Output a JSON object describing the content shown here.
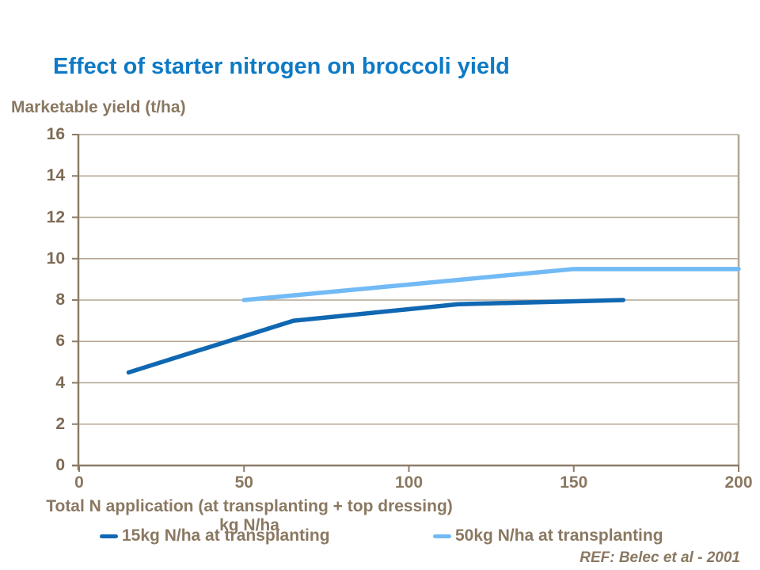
{
  "title": "Effect of starter nitrogen on broccoli yield",
  "reference": "REF: Belec et al - 2001",
  "colors": {
    "title_blue": "#0d7ac6",
    "dark_blue": "#1068b2",
    "light_blue": "#72baf5",
    "taupe_text": "#8a7861",
    "tick_text": "#7d6b54",
    "grid": "#b3a695",
    "axis": "#8c7d68",
    "background": "#ffffff"
  },
  "chart_data": {
    "type": "line",
    "title": "Effect of starter nitrogen on broccoli yield",
    "xlabel": "Total N application (at transplanting + top dressing) kg N/ha",
    "ylabel": "Marketable yield (t/ha)",
    "xlim": [
      0,
      200
    ],
    "ylim": [
      0,
      16
    ],
    "x_ticks": [
      0,
      50,
      100,
      150,
      200
    ],
    "y_ticks": [
      0,
      2,
      4,
      6,
      8,
      10,
      12,
      14,
      16
    ],
    "grid": "horizontal gridlines on",
    "legend_position": "bottom",
    "series": [
      {
        "name": "15kg N/ha at transplanting",
        "color_key": "dark_blue",
        "points": [
          [
            15,
            4.5
          ],
          [
            65,
            7.0
          ],
          [
            115,
            7.8
          ],
          [
            165,
            8.0
          ]
        ]
      },
      {
        "name": "50kg N/ha at transplanting",
        "color_key": "light_blue",
        "points": [
          [
            50,
            8.0
          ],
          [
            150,
            9.5
          ],
          [
            200,
            9.5
          ]
        ]
      }
    ]
  }
}
